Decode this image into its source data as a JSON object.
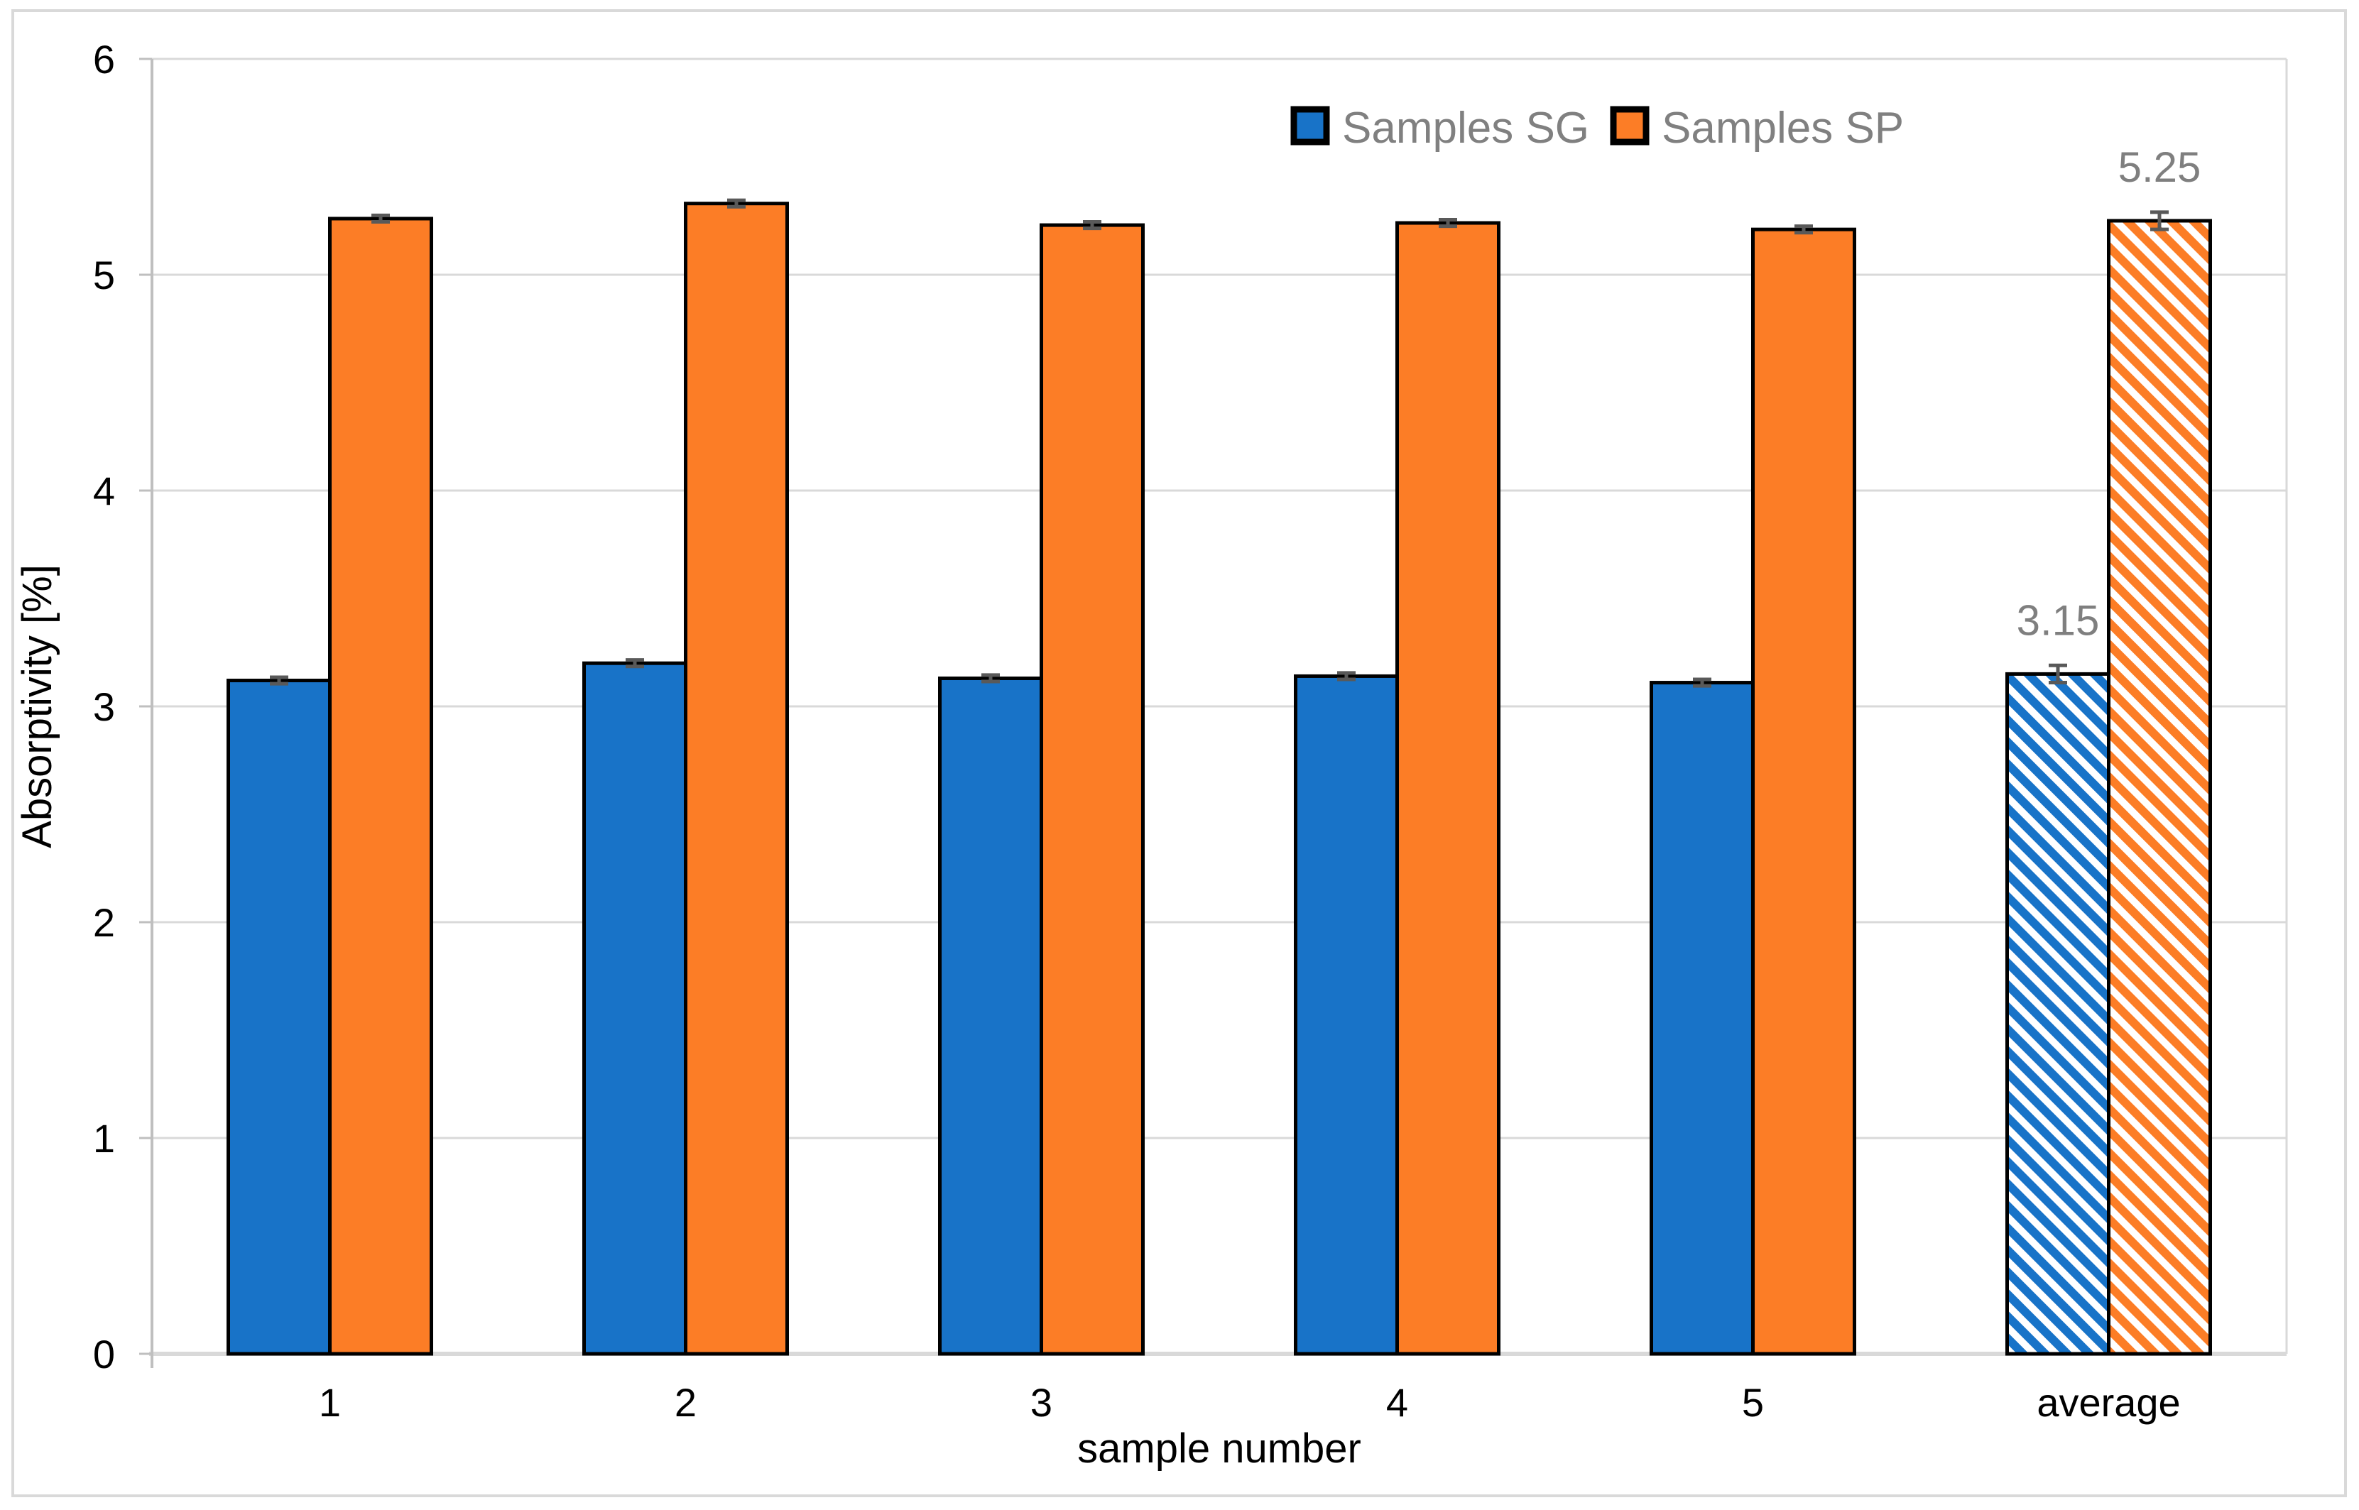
{
  "figure": {
    "background": "#FFFFFF",
    "border_color": "#D9D9D9"
  },
  "chart_data": {
    "type": "bar",
    "title": "",
    "xlabel": "sample number",
    "ylabel": "Absorptivity [%]",
    "categories": [
      "1",
      "2",
      "3",
      "4",
      "5",
      "average"
    ],
    "series": [
      {
        "name": "Samples SG",
        "color": "#1873C8",
        "values": [
          3.12,
          3.2,
          3.13,
          3.14,
          3.11,
          3.15
        ],
        "errors": [
          0.015,
          0.015,
          0.015,
          0.015,
          0.015,
          0.04
        ],
        "data_label": {
          "category_index": 5,
          "text": "3.15"
        }
      },
      {
        "name": "Samples SP",
        "color": "#FC7D26",
        "values": [
          5.26,
          5.33,
          5.23,
          5.24,
          5.21,
          5.25
        ],
        "errors": [
          0.015,
          0.015,
          0.015,
          0.015,
          0.015,
          0.04
        ],
        "data_label": {
          "category_index": 5,
          "text": "5.25"
        }
      }
    ],
    "hatched_category_index": 5,
    "hatch_style": "diagonal-down-stripes",
    "ylim": [
      0,
      6
    ],
    "yticks": [
      "0",
      "1",
      "2",
      "3",
      "4",
      "5",
      "6"
    ],
    "grid": true,
    "legend_position": "top-center",
    "colors": {
      "gridline": "#D9D9D9",
      "axis_line": "#BFBFBF",
      "bar_border": "#000000",
      "error_bar": "#595959",
      "tick_label": "#000000",
      "axis_title": "#000000",
      "legend_text": "#808080",
      "data_label": "#7F7F7F"
    }
  }
}
